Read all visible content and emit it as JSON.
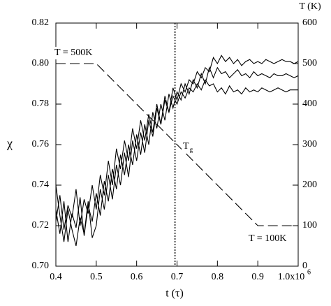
{
  "chart_data": {
    "type": "line",
    "xlabel": "t (τ)",
    "ylabel": "χ",
    "y2label": "T (K)",
    "xlim": [
      0.4,
      1.0
    ],
    "ylim": [
      0.7,
      0.82
    ],
    "y2lim": [
      0,
      600
    ],
    "xticks": [
      0.4,
      0.5,
      0.6,
      0.7,
      0.8,
      0.9,
      {
        "value": 1.0,
        "label": "1.0x10",
        "superscript": "6"
      }
    ],
    "yticks": [
      {
        "value": 0.7,
        "label": "0.70"
      },
      0.72,
      0.74,
      0.76,
      0.78,
      {
        "value": 0.8,
        "label": "0.80"
      },
      0.82
    ],
    "y2ticks": [
      0,
      100,
      200,
      300,
      400,
      500,
      600
    ],
    "x": [
      0.4,
      0.41,
      0.42,
      0.43,
      0.44,
      0.45,
      0.46,
      0.47,
      0.48,
      0.49,
      0.5,
      0.51,
      0.52,
      0.53,
      0.54,
      0.55,
      0.56,
      0.57,
      0.58,
      0.59,
      0.6,
      0.61,
      0.62,
      0.63,
      0.64,
      0.65,
      0.66,
      0.67,
      0.68,
      0.69,
      0.7,
      0.71,
      0.72,
      0.73,
      0.74,
      0.75,
      0.76,
      0.77,
      0.78,
      0.79,
      0.8,
      0.81,
      0.82,
      0.83,
      0.84,
      0.85,
      0.86,
      0.87,
      0.88,
      0.89,
      0.9,
      0.91,
      0.92,
      0.93,
      0.94,
      0.95,
      0.96,
      0.97,
      0.98,
      0.99,
      1.0
    ],
    "series": [
      {
        "color": "#000000",
        "values": [
          0.722,
          0.735,
          0.718,
          0.73,
          0.724,
          0.738,
          0.72,
          0.733,
          0.726,
          0.74,
          0.728,
          0.745,
          0.735,
          0.752,
          0.74,
          0.758,
          0.748,
          0.762,
          0.752,
          0.768,
          0.758,
          0.772,
          0.762,
          0.775,
          0.766,
          0.78,
          0.77,
          0.784,
          0.776,
          0.788,
          0.782,
          0.79,
          0.786,
          0.792,
          0.79,
          0.796,
          0.793,
          0.798,
          0.796,
          0.803,
          0.8,
          0.804,
          0.801,
          0.803,
          0.8,
          0.802,
          0.799,
          0.801,
          0.802,
          0.8,
          0.801,
          0.8,
          0.802,
          0.801,
          0.8,
          0.801,
          0.802,
          0.801,
          0.801,
          0.8,
          0.801
        ]
      },
      {
        "color": "#000000",
        "values": [
          0.728,
          0.716,
          0.732,
          0.712,
          0.726,
          0.719,
          0.734,
          0.715,
          0.73,
          0.722,
          0.736,
          0.725,
          0.742,
          0.732,
          0.748,
          0.738,
          0.755,
          0.745,
          0.76,
          0.75,
          0.765,
          0.755,
          0.77,
          0.76,
          0.776,
          0.768,
          0.78,
          0.772,
          0.785,
          0.778,
          0.786,
          0.782,
          0.79,
          0.785,
          0.792,
          0.788,
          0.795,
          0.79,
          0.798,
          0.793,
          0.798,
          0.795,
          0.796,
          0.793,
          0.795,
          0.797,
          0.794,
          0.795,
          0.793,
          0.796,
          0.794,
          0.795,
          0.794,
          0.793,
          0.795,
          0.794,
          0.794,
          0.795,
          0.794,
          0.793,
          0.794
        ]
      },
      {
        "color": "#000000",
        "values": [
          0.74,
          0.725,
          0.712,
          0.728,
          0.718,
          0.71,
          0.724,
          0.716,
          0.732,
          0.714,
          0.72,
          0.738,
          0.728,
          0.745,
          0.733,
          0.75,
          0.74,
          0.756,
          0.744,
          0.762,
          0.752,
          0.766,
          0.756,
          0.772,
          0.764,
          0.778,
          0.77,
          0.782,
          0.776,
          0.784,
          0.78,
          0.786,
          0.783,
          0.788,
          0.786,
          0.79,
          0.787,
          0.792,
          0.789,
          0.79,
          0.786,
          0.788,
          0.785,
          0.789,
          0.786,
          0.787,
          0.785,
          0.788,
          0.786,
          0.787,
          0.786,
          0.788,
          0.787,
          0.786,
          0.787,
          0.788,
          0.787,
          0.786,
          0.787,
          0.787,
          0.787
        ]
      },
      {
        "color": "#000000",
        "axis": "y2",
        "linestyle": "dashed",
        "x": [
          0.4,
          0.5,
          0.9,
          1.0
        ],
        "values": [
          500,
          500,
          100,
          100
        ]
      }
    ],
    "reference_lines": [
      {
        "x": 0.695,
        "linestyle": "dotted"
      }
    ],
    "annotations": [
      {
        "text": "T = 500K"
      },
      {
        "text": "T = 100K"
      },
      {
        "text": "T",
        "subscript": "g"
      }
    ]
  }
}
